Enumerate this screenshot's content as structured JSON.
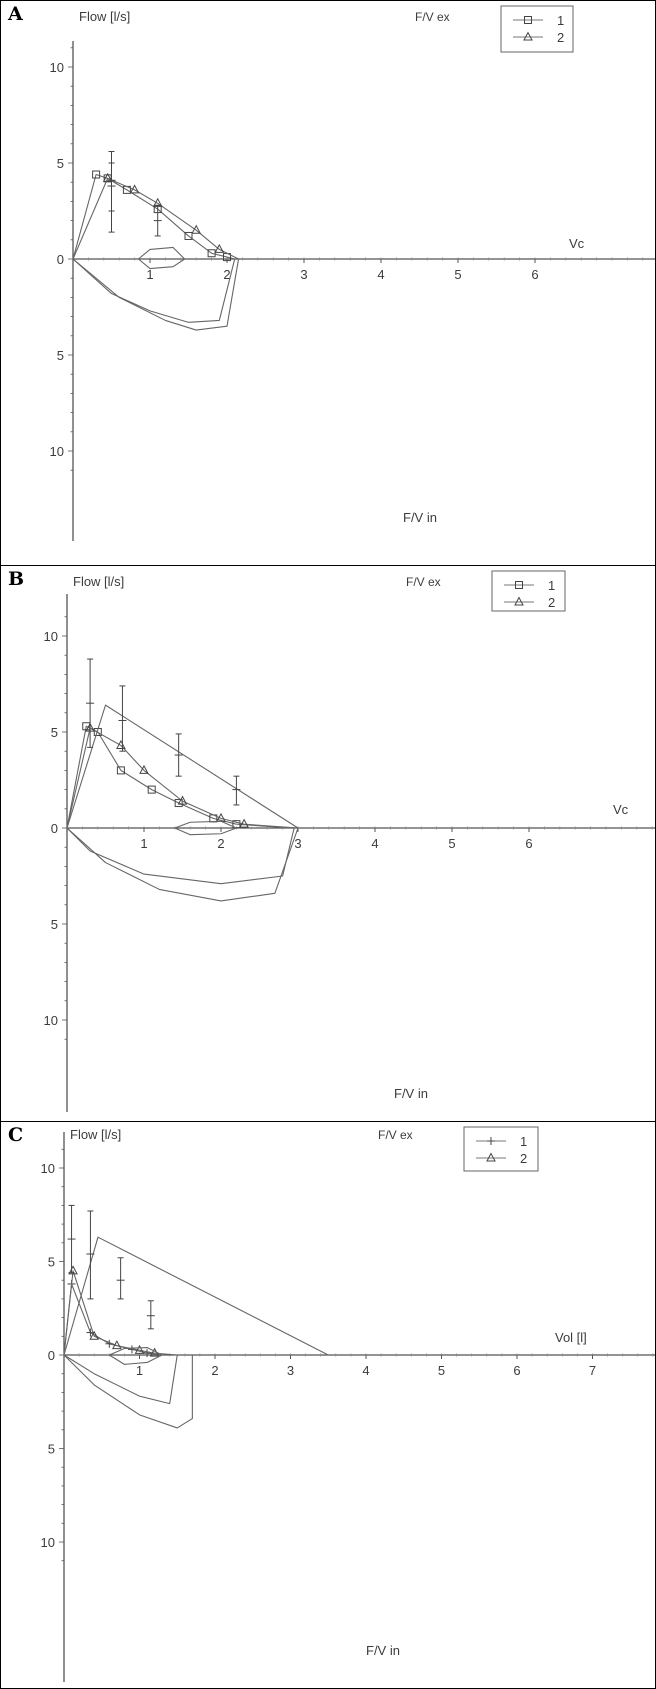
{
  "figure": {
    "panels": [
      {
        "letter": "A",
        "ylabel": "Flow [l/s]",
        "xlabel": "Vc",
        "top_label": "F/V ex",
        "bottom_label": "F/V in",
        "legend": [
          "1",
          "2"
        ],
        "legend_markers": [
          "square",
          "triangle"
        ],
        "x_ticks": [
          "1",
          "2",
          "3",
          "4",
          "5",
          "6"
        ],
        "y_ticks_up": [
          "0",
          "5",
          "10"
        ],
        "y_ticks_down": [
          "5",
          "10"
        ]
      },
      {
        "letter": "B",
        "ylabel": "Flow [l/s]",
        "xlabel": "Vc",
        "top_label": "F/V ex",
        "bottom_label": "F/V in",
        "legend": [
          "1",
          "2"
        ],
        "legend_markers": [
          "square",
          "triangle"
        ],
        "x_ticks": [
          "1",
          "2",
          "3",
          "4",
          "5",
          "6"
        ],
        "y_ticks_up": [
          "0",
          "5",
          "10"
        ],
        "y_ticks_down": [
          "5",
          "10"
        ]
      },
      {
        "letter": "C",
        "ylabel": "Flow [l/s]",
        "xlabel": "Vol [l]",
        "top_label": "F/V ex",
        "bottom_label": "F/V in",
        "legend": [
          "1",
          "2"
        ],
        "legend_markers": [
          "plus",
          "triangle"
        ],
        "x_ticks": [
          "1",
          "2",
          "3",
          "4",
          "5",
          "6",
          "7"
        ],
        "y_ticks_up": [
          "0",
          "5",
          "10"
        ],
        "y_ticks_down": [
          "5",
          "10"
        ]
      }
    ]
  },
  "chart_data": [
    {
      "type": "line",
      "panel": "A",
      "xlim": [
        0,
        6.6
      ],
      "ylim": [
        -12,
        11
      ],
      "y_orientation": "expiration up, inspiration down",
      "series": [
        {
          "name": "1",
          "marker": "square",
          "x": [
            0,
            0.3,
            0.45,
            0.7,
            1.1,
            1.5,
            1.8,
            2.0,
            2.1
          ],
          "y": [
            0,
            4.4,
            4.2,
            3.6,
            2.6,
            1.2,
            0.3,
            0.1,
            0
          ]
        },
        {
          "name": "2",
          "marker": "triangle",
          "x": [
            0,
            0.45,
            0.8,
            1.1,
            1.6,
            1.9,
            2.15
          ],
          "y": [
            0,
            4.2,
            3.6,
            2.9,
            1.5,
            0.5,
            0
          ]
        },
        {
          "name": "insp-1",
          "line_only": true,
          "x": [
            0,
            0.5,
            1.0,
            1.5,
            1.9,
            2.1
          ],
          "y": [
            0,
            -1.8,
            -2.7,
            -3.3,
            -3.2,
            0
          ]
        },
        {
          "name": "insp-2",
          "line_only": true,
          "x": [
            0,
            0.6,
            1.2,
            1.6,
            2.0,
            2.15
          ],
          "y": [
            0,
            -2.0,
            -3.2,
            -3.7,
            -3.5,
            0
          ]
        },
        {
          "name": "tidal-loop",
          "line_only": true,
          "x": [
            0.85,
            1.0,
            1.3,
            1.45,
            1.3,
            1.0,
            0.85
          ],
          "y": [
            0,
            0.5,
            0.6,
            0,
            -0.4,
            -0.5,
            0
          ]
        }
      ],
      "error_bars": [
        {
          "x": 0.5,
          "y": 4.1,
          "low": 1.4,
          "high": 5.6
        },
        {
          "x": 0.5,
          "y": 3.8,
          "low": 2.5,
          "high": 5.0
        },
        {
          "x": 1.1,
          "y": 2.0,
          "low": 1.2,
          "high": 2.8
        }
      ]
    },
    {
      "type": "line",
      "panel": "B",
      "xlim": [
        0,
        6.6
      ],
      "ylim": [
        -12,
        11
      ],
      "y_orientation": "expiration up, inspiration down",
      "series": [
        {
          "name": "1",
          "marker": "square",
          "x": [
            0,
            0.25,
            0.4,
            0.7,
            1.1,
            1.45,
            1.9,
            2.2,
            2.9
          ],
          "y": [
            0,
            5.3,
            5.0,
            3.0,
            2.0,
            1.3,
            0.5,
            0.2,
            0
          ]
        },
        {
          "name": "2",
          "marker": "triangle",
          "x": [
            0,
            0.3,
            0.7,
            1.0,
            1.5,
            2.0,
            2.3,
            3.0
          ],
          "y": [
            0,
            5.2,
            4.3,
            3.0,
            1.4,
            0.5,
            0.2,
            0
          ]
        },
        {
          "name": "mean-boundary",
          "line_only": true,
          "x": [
            0,
            0.5,
            3.0
          ],
          "y": [
            0,
            6.4,
            0
          ]
        },
        {
          "name": "insp-1",
          "line_only": true,
          "x": [
            0,
            0.3,
            1.0,
            2.0,
            2.8,
            2.95
          ],
          "y": [
            0,
            -1.2,
            -2.4,
            -2.9,
            -2.5,
            0
          ]
        },
        {
          "name": "insp-2",
          "line_only": true,
          "x": [
            0,
            0.5,
            1.2,
            2.0,
            2.7,
            3.0
          ],
          "y": [
            0,
            -1.8,
            -3.2,
            -3.8,
            -3.4,
            0
          ]
        },
        {
          "name": "tidal-loop",
          "line_only": true,
          "x": [
            1.4,
            1.6,
            2.0,
            2.2,
            2.0,
            1.6,
            1.4
          ],
          "y": [
            0,
            0.3,
            0.35,
            0,
            -0.3,
            -0.35,
            0
          ]
        }
      ],
      "error_bars": [
        {
          "x": 0.3,
          "y": 6.5,
          "low": 4.2,
          "high": 8.8
        },
        {
          "x": 0.72,
          "y": 5.6,
          "low": 4.0,
          "high": 7.4
        },
        {
          "x": 1.45,
          "y": 3.8,
          "low": 2.7,
          "high": 4.9
        },
        {
          "x": 2.2,
          "y": 2.0,
          "low": 1.2,
          "high": 2.7
        }
      ]
    },
    {
      "type": "line",
      "panel": "C",
      "xlim": [
        0,
        7
      ],
      "ylim": [
        -12,
        11
      ],
      "y_orientation": "expiration up, inspiration down",
      "series": [
        {
          "name": "1",
          "marker": "plus",
          "x": [
            0,
            0.1,
            0.35,
            0.6,
            0.9,
            1.1,
            1.3
          ],
          "y": [
            0,
            3.8,
            1.2,
            0.6,
            0.3,
            0.1,
            0
          ]
        },
        {
          "name": "2",
          "marker": "triangle",
          "x": [
            0,
            0.12,
            0.4,
            0.7,
            1.0,
            1.2,
            1.5
          ],
          "y": [
            0,
            4.5,
            1.0,
            0.5,
            0.25,
            0.1,
            0
          ]
        },
        {
          "name": "mean-boundary",
          "line_only": true,
          "x": [
            0,
            0.45,
            3.5
          ],
          "y": [
            0,
            6.3,
            0
          ]
        },
        {
          "name": "insp-1",
          "line_only": true,
          "x": [
            0,
            0.4,
            1.0,
            1.4,
            1.5
          ],
          "y": [
            0,
            -1.0,
            -2.2,
            -2.6,
            0
          ]
        },
        {
          "name": "insp-2",
          "line_only": true,
          "x": [
            0,
            0.4,
            1.0,
            1.5,
            1.7,
            1.7
          ],
          "y": [
            0,
            -1.6,
            -3.2,
            -3.9,
            -3.4,
            0
          ]
        },
        {
          "name": "tidal-loop",
          "line_only": true,
          "x": [
            0.6,
            0.8,
            1.1,
            1.3,
            1.1,
            0.8,
            0.6
          ],
          "y": [
            0,
            0.35,
            0.4,
            0,
            -0.4,
            -0.5,
            0
          ]
        }
      ],
      "error_bars": [
        {
          "x": 0.1,
          "y": 6.2,
          "low": 4.4,
          "high": 8.0
        },
        {
          "x": 0.35,
          "y": 5.4,
          "low": 3.0,
          "high": 7.7
        },
        {
          "x": 0.75,
          "y": 4.0,
          "low": 3.0,
          "high": 5.2
        },
        {
          "x": 1.15,
          "y": 2.1,
          "low": 1.4,
          "high": 2.9
        }
      ]
    }
  ]
}
